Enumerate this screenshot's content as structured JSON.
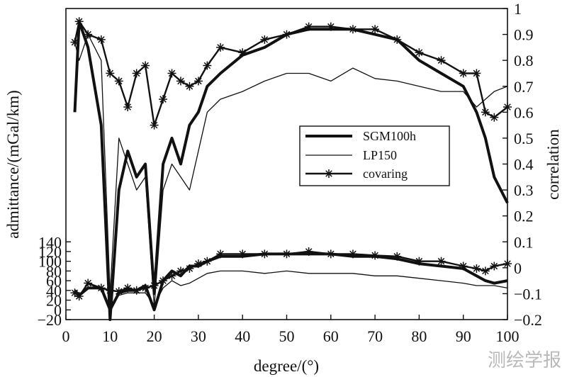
{
  "chart_data": {
    "type": "line",
    "xlabel": "degree/(°)",
    "ylabel_left": "admittance/(mGal/km)",
    "ylabel_right": "correlation",
    "xlim": [
      0,
      100
    ],
    "x_ticks": [
      0,
      10,
      20,
      30,
      40,
      50,
      60,
      70,
      80,
      90,
      100
    ],
    "right_ylim": [
      -0.2,
      1
    ],
    "right_y_ticks": [
      -0.2,
      -0.1,
      0,
      0.1,
      0.2,
      0.3,
      0.4,
      0.5,
      0.6,
      0.7,
      0.8,
      0.9,
      1
    ],
    "left_ylim": [
      -20,
      620
    ],
    "left_y_ticks": [
      -20,
      0,
      20,
      40,
      60,
      80,
      100,
      120,
      140
    ],
    "legend": {
      "position": "center-right",
      "entries": [
        {
          "label": "SGM100h",
          "style": "thick"
        },
        {
          "label": "LP150",
          "style": "thin"
        },
        {
          "label": "covaring",
          "style": "star"
        }
      ]
    },
    "x": [
      2,
      3,
      5,
      8,
      10,
      12,
      14,
      16,
      18,
      20,
      22,
      24,
      26,
      28,
      30,
      32,
      35,
      40,
      45,
      50,
      55,
      60,
      65,
      70,
      75,
      80,
      85,
      90,
      93,
      95,
      97,
      100
    ],
    "series": [
      {
        "name": "SGM100h",
        "axis": "right",
        "values": [
          0.6,
          0.95,
          0.85,
          0.55,
          -0.2,
          0.3,
          0.45,
          0.35,
          0.4,
          -0.1,
          0.4,
          0.5,
          0.4,
          0.55,
          0.6,
          0.7,
          0.75,
          0.82,
          0.85,
          0.9,
          0.92,
          0.92,
          0.92,
          0.9,
          0.88,
          0.8,
          0.75,
          0.7,
          0.6,
          0.5,
          0.35,
          0.25
        ]
      },
      {
        "name": "LP150",
        "axis": "right",
        "values": [
          0.87,
          0.8,
          0.9,
          0.8,
          -0.1,
          0.5,
          0.4,
          0.3,
          0.35,
          -0.15,
          0.3,
          0.4,
          0.35,
          0.3,
          0.45,
          0.6,
          0.65,
          0.68,
          0.72,
          0.75,
          0.75,
          0.72,
          0.77,
          0.73,
          0.72,
          0.7,
          0.68,
          0.68,
          0.62,
          0.65,
          0.68,
          0.7
        ]
      },
      {
        "name": "covaring",
        "axis": "right",
        "values": [
          0.87,
          0.95,
          0.9,
          0.88,
          0.75,
          0.72,
          0.62,
          0.75,
          0.78,
          0.55,
          0.65,
          0.75,
          0.72,
          0.7,
          0.72,
          0.78,
          0.85,
          0.83,
          0.88,
          0.9,
          0.93,
          0.93,
          0.92,
          0.92,
          0.88,
          0.83,
          0.8,
          0.75,
          0.75,
          0.6,
          0.58,
          0.62
        ]
      },
      {
        "name": "SGM100h",
        "axis": "left",
        "values": [
          40,
          30,
          45,
          45,
          0,
          35,
          40,
          40,
          50,
          0,
          60,
          80,
          70,
          90,
          90,
          100,
          110,
          110,
          115,
          115,
          115,
          115,
          110,
          110,
          105,
          95,
          90,
          85,
          70,
          60,
          55,
          60
        ]
      },
      {
        "name": "LP150",
        "axis": "left",
        "values": [
          30,
          25,
          55,
          40,
          5,
          30,
          35,
          35,
          35,
          10,
          45,
          60,
          50,
          55,
          65,
          75,
          80,
          80,
          75,
          80,
          75,
          75,
          75,
          70,
          70,
          65,
          60,
          55,
          50,
          50,
          50,
          45
        ]
      },
      {
        "name": "covaring",
        "axis": "left",
        "values": [
          35,
          28,
          55,
          45,
          40,
          38,
          45,
          40,
          45,
          50,
          60,
          70,
          80,
          85,
          95,
          100,
          115,
          115,
          115,
          115,
          120,
          115,
          115,
          112,
          110,
          100,
          100,
          90,
          85,
          80,
          90,
          95
        ]
      }
    ],
    "colors": {
      "line": "#111111",
      "background": "#ffffff"
    }
  },
  "watermark": "测绘学报"
}
